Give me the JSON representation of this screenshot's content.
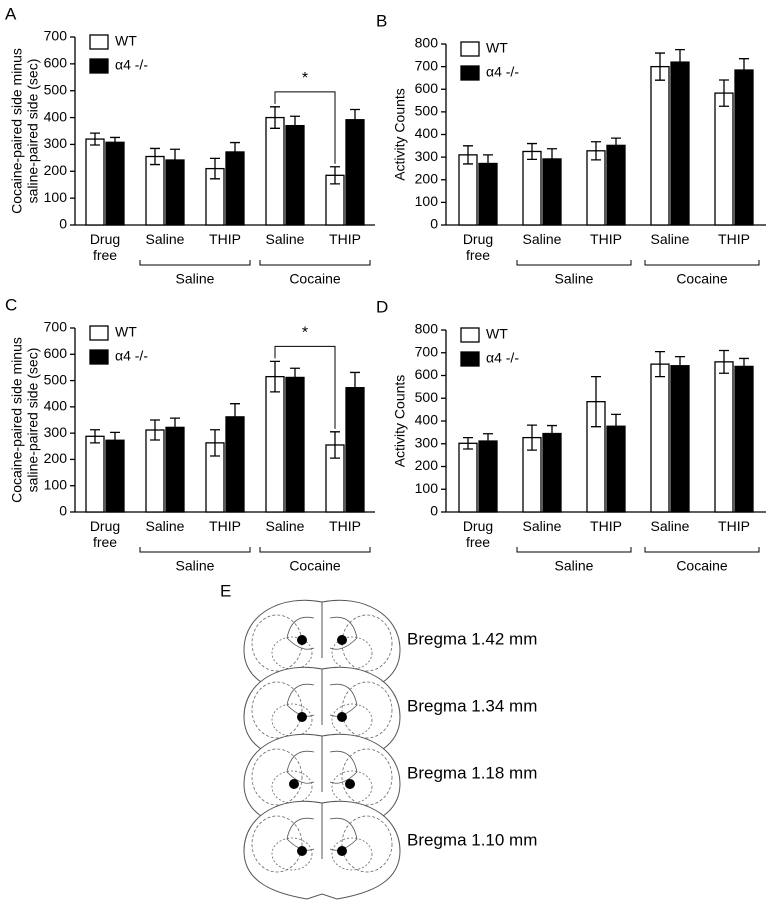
{
  "chart_data": [
    {
      "type": "bar",
      "label": "A",
      "ylabel": [
        "Cocaine-paired side minus",
        "saline-paired side (sec)"
      ],
      "categories": [
        "Drug free",
        "Saline",
        "THIP",
        "Saline",
        "THIP"
      ],
      "groups": [
        null,
        "Saline",
        "Saline",
        "Cocaine",
        "Cocaine"
      ],
      "series": [
        {
          "name": "WT",
          "color": "#ffffff",
          "values": [
            320,
            255,
            210,
            400,
            185
          ],
          "errors": [
            22,
            30,
            38,
            40,
            32
          ]
        },
        {
          "name": "α4 -/-",
          "color": "#000000",
          "values": [
            308,
            242,
            272,
            370,
            392
          ],
          "errors": [
            18,
            40,
            35,
            35,
            38
          ]
        }
      ],
      "ylim": [
        0,
        700
      ],
      "yticks": [
        0,
        100,
        200,
        300,
        400,
        500,
        600,
        700
      ],
      "annotation": {
        "text": "*",
        "between": [
          3,
          4
        ]
      }
    },
    {
      "type": "bar",
      "label": "B",
      "ylabel": [
        "Activity Counts"
      ],
      "categories": [
        "Drug free",
        "Saline",
        "THIP",
        "Saline",
        "THIP"
      ],
      "groups": [
        null,
        "Saline",
        "Saline",
        "Cocaine",
        "Cocaine"
      ],
      "series": [
        {
          "name": "WT",
          "color": "#ffffff",
          "values": [
            310,
            325,
            328,
            700,
            583
          ],
          "errors": [
            40,
            35,
            40,
            60,
            58
          ]
        },
        {
          "name": "α4 -/-",
          "color": "#000000",
          "values": [
            272,
            292,
            352,
            720,
            685
          ],
          "errors": [
            38,
            45,
            32,
            55,
            50
          ]
        }
      ],
      "ylim": [
        0,
        800
      ],
      "yticks": [
        0,
        100,
        200,
        300,
        400,
        500,
        600,
        700,
        800
      ]
    },
    {
      "type": "bar",
      "label": "C",
      "ylabel": [
        "Cocaine-paired side minus",
        "saline-paired side (sec)"
      ],
      "categories": [
        "Drug free",
        "Saline",
        "THIP",
        "Saline",
        "THIP"
      ],
      "groups": [
        null,
        "Saline",
        "Saline",
        "Cocaine",
        "Cocaine"
      ],
      "series": [
        {
          "name": "WT",
          "color": "#ffffff",
          "values": [
            288,
            312,
            263,
            515,
            255
          ],
          "errors": [
            25,
            38,
            50,
            58,
            50
          ]
        },
        {
          "name": "α4 -/-",
          "color": "#000000",
          "values": [
            273,
            322,
            362,
            512,
            473
          ],
          "errors": [
            30,
            35,
            50,
            35,
            58
          ]
        }
      ],
      "ylim": [
        0,
        700
      ],
      "yticks": [
        0,
        100,
        200,
        300,
        400,
        500,
        600,
        700
      ],
      "annotation": {
        "text": "*",
        "between": [
          3,
          4
        ]
      }
    },
    {
      "type": "bar",
      "label": "D",
      "ylabel": [
        "Activity Counts"
      ],
      "categories": [
        "Drug free",
        "Saline",
        "THIP",
        "Saline",
        "THIP"
      ],
      "groups": [
        null,
        "Saline",
        "Saline",
        "Cocaine",
        "Cocaine"
      ],
      "series": [
        {
          "name": "WT",
          "color": "#ffffff",
          "values": [
            302,
            327,
            485,
            650,
            660
          ],
          "errors": [
            25,
            55,
            110,
            55,
            50
          ]
        },
        {
          "name": "α4 -/-",
          "color": "#000000",
          "values": [
            312,
            345,
            377,
            643,
            640
          ],
          "errors": [
            32,
            35,
            52,
            40,
            35
          ]
        }
      ],
      "ylim": [
        0,
        800
      ],
      "yticks": [
        0,
        100,
        200,
        300,
        400,
        500,
        600,
        700,
        800
      ]
    }
  ],
  "panel_e": {
    "label": "E",
    "sections": [
      "Bregma 1.42 mm",
      "Bregma 1.34 mm",
      "Bregma 1.18 mm",
      "Bregma 1.10 mm"
    ]
  }
}
